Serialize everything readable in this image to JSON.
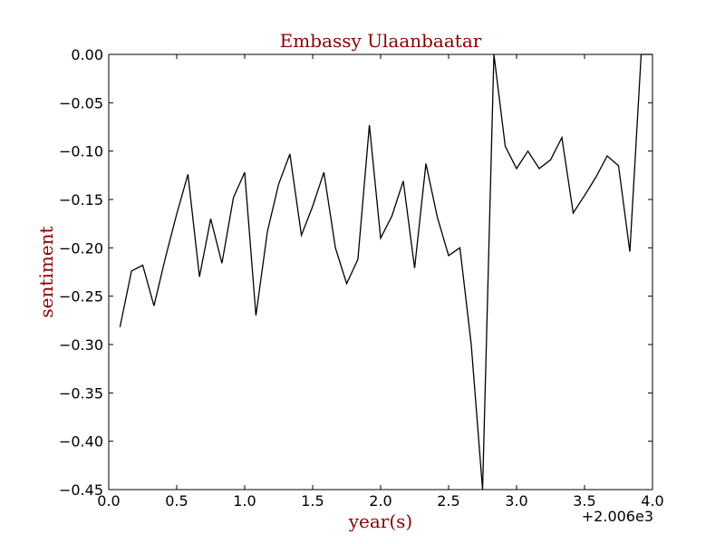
{
  "chart_data": {
    "type": "line",
    "title": "Embassy Ulaanbaatar",
    "xlabel": "year(s)",
    "ylabel": "sentiment",
    "x_offset_label": "+2.006e3",
    "xlim": [
      0.0,
      4.0
    ],
    "ylim": [
      -0.45,
      0.0
    ],
    "x_ticks": [
      0.0,
      0.5,
      1.0,
      1.5,
      2.0,
      2.5,
      3.0,
      3.5,
      4.0
    ],
    "x_tick_labels": [
      "0.0",
      "0.5",
      "1.0",
      "1.5",
      "2.0",
      "2.5",
      "3.0",
      "3.5",
      "4.0"
    ],
    "y_ticks": [
      0.0,
      -0.05,
      -0.1,
      -0.15,
      -0.2,
      -0.25,
      -0.3,
      -0.35,
      -0.4,
      -0.45
    ],
    "y_tick_labels": [
      "0.00",
      "−0.05",
      "−0.10",
      "−0.15",
      "−0.20",
      "−0.25",
      "−0.30",
      "−0.35",
      "−0.40",
      "−0.45"
    ],
    "grid": false,
    "line_color": "#000000",
    "text_color": "#8b0000",
    "series": [
      {
        "x": [
          0.083,
          0.167,
          0.25,
          0.333,
          0.417,
          0.5,
          0.583,
          0.667,
          0.75,
          0.833,
          0.917,
          1.0,
          1.083,
          1.167,
          1.25,
          1.333,
          1.417,
          1.5,
          1.583,
          1.667,
          1.75,
          1.833,
          1.917,
          2.0,
          2.083,
          2.167,
          2.25,
          2.333,
          2.417,
          2.5,
          2.583,
          2.667,
          2.75,
          2.833,
          2.917,
          3.0,
          3.083,
          3.167,
          3.25,
          3.333,
          3.417,
          3.5,
          3.583,
          3.667,
          3.75,
          3.833,
          3.917,
          4.0
        ],
        "y": [
          -0.282,
          -0.224,
          -0.218,
          -0.26,
          -0.21,
          -0.165,
          -0.124,
          -0.23,
          -0.17,
          -0.216,
          -0.148,
          -0.122,
          -0.27,
          -0.183,
          -0.134,
          -0.103,
          -0.187,
          -0.157,
          -0.122,
          -0.2,
          -0.237,
          -0.212,
          -0.073,
          -0.19,
          -0.167,
          -0.131,
          -0.221,
          -0.113,
          -0.168,
          -0.208,
          -0.2,
          -0.3,
          -0.45,
          0.0,
          -0.095,
          -0.118,
          -0.1,
          -0.118,
          -0.109,
          -0.086,
          -0.164,
          -0.146,
          -0.127,
          -0.105,
          -0.115,
          -0.204,
          0.0,
          0.0
        ]
      }
    ]
  }
}
